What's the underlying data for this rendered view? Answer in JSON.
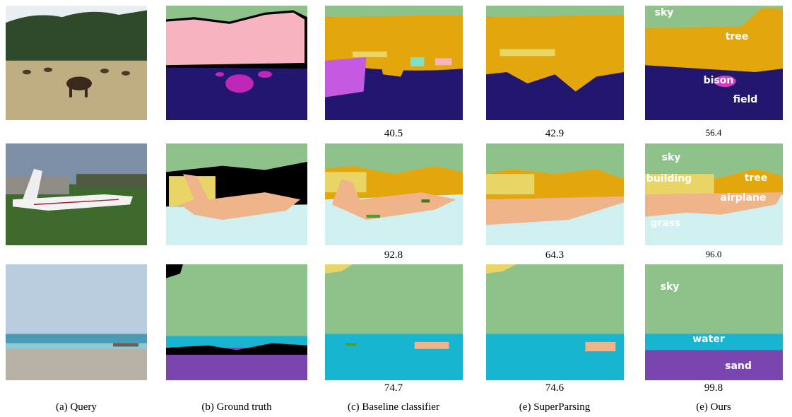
{
  "columns": [
    {
      "caption": "(a) Query"
    },
    {
      "caption": "(b) Ground truth"
    },
    {
      "caption": "(c) Baseline classifier"
    },
    {
      "caption": "(e) SuperParsing"
    },
    {
      "caption": "(e) Ours"
    }
  ],
  "rows": [
    {
      "scores": [
        "40.5",
        "42.9",
        "56.4"
      ],
      "labels": [
        "sky",
        "tree",
        "bison",
        "field"
      ]
    },
    {
      "scores": [
        "92.8",
        "64.3",
        "96.0"
      ],
      "labels": [
        "sky",
        "building",
        "tree",
        "airplane",
        "grass"
      ]
    },
    {
      "scores": [
        "74.7",
        "74.6",
        "99.8"
      ],
      "labels": [
        "sky",
        "water",
        "sand"
      ]
    }
  ]
}
